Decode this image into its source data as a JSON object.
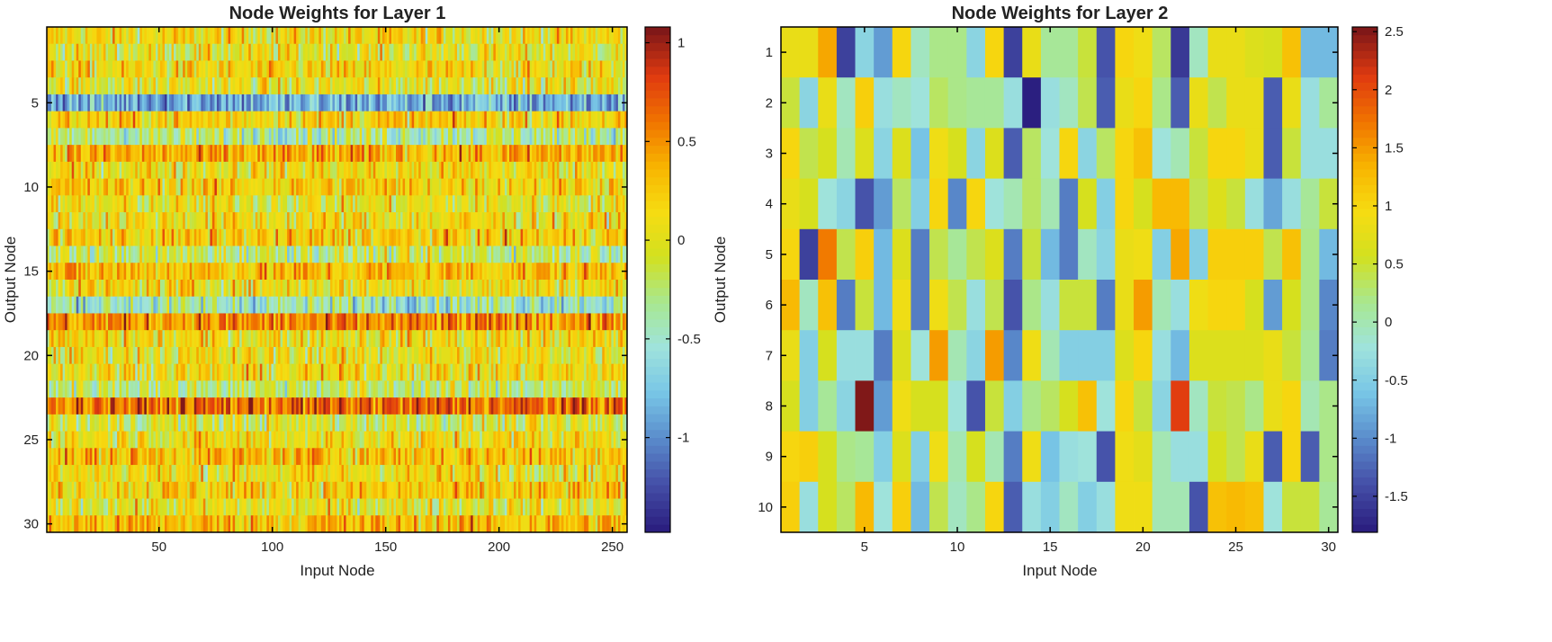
{
  "colormap": [
    "#2b1f80",
    "#4550a8",
    "#5a8ccc",
    "#78c6e6",
    "#9fe3dc",
    "#a8e890",
    "#d2e020",
    "#f6dc12",
    "#f8b400",
    "#f07400",
    "#e03a10",
    "#801818"
  ],
  "chart_data": [
    {
      "type": "heatmap",
      "title": "Node Weights for Layer 1",
      "xlabel": "Input Node",
      "ylabel": "Output Node",
      "rows": 30,
      "cols": 256,
      "xticks": [
        50,
        100,
        150,
        200,
        250
      ],
      "yticks": [
        5,
        10,
        15,
        20,
        25,
        30
      ],
      "clim": [
        -1.48,
        1.08
      ],
      "colorbar_ticks": [
        1,
        0.5,
        0,
        -0.5,
        -1
      ],
      "colorbar_tick_labels": [
        "1",
        "0.5",
        "0",
        "-0.5",
        "-1"
      ],
      "values_note": "per-row summary of weights (256 values per row, pseudo-randomly spread around the row mean)",
      "row_means": [
        0.1,
        0.0,
        0.1,
        0.0,
        -0.85,
        0.2,
        -0.3,
        0.35,
        0.1,
        0.2,
        0.0,
        0.1,
        0.2,
        -0.2,
        0.3,
        0.1,
        -0.45,
        0.5,
        0.1,
        0.05,
        0.1,
        -0.2,
        0.65,
        -0.1,
        0.1,
        0.3,
        0.1,
        0.2,
        0.0,
        0.3
      ],
      "row_spread": 0.35
    },
    {
      "type": "heatmap",
      "title": "Node Weights for Layer 2",
      "xlabel": "Input Node",
      "ylabel": "Output Node",
      "rows": 10,
      "cols": 30,
      "xticks": [
        5,
        10,
        15,
        20,
        25,
        30
      ],
      "yticks": [
        1,
        2,
        3,
        4,
        5,
        6,
        7,
        8,
        9,
        10
      ],
      "clim": [
        -1.81,
        2.54
      ],
      "colorbar_ticks": [
        2.5,
        2,
        1.5,
        1,
        0.5,
        0,
        -0.5,
        -1,
        -1.5
      ],
      "colorbar_tick_labels": [
        "2.5",
        "2",
        "1.5",
        "1",
        "0.5",
        "0",
        "-0.5",
        "-1",
        "-1.5"
      ],
      "values": [
        [
          0.8,
          0.8,
          1.4,
          -1.5,
          -0.4,
          -0.9,
          1.0,
          -0.1,
          0.2,
          0.2,
          -0.4,
          1.0,
          -1.5,
          0.8,
          0.1,
          0.1,
          0.5,
          -1.4,
          1.0,
          0.9,
          0.3,
          -1.6,
          -0.1,
          0.8,
          0.8,
          0.7,
          0.6,
          1.2,
          -0.7,
          -0.7
        ],
        [
          0.5,
          -0.4,
          0.8,
          -0.1,
          1.1,
          -0.3,
          -0.1,
          -0.2,
          0.3,
          0.2,
          0.1,
          0.1,
          -0.3,
          -1.8,
          -0.3,
          -0.1,
          0.4,
          -1.3,
          0.8,
          1.0,
          0.2,
          -1.3,
          0.8,
          0.4,
          0.8,
          0.8,
          -1.3,
          0.8,
          -0.3,
          0.1
        ],
        [
          1.0,
          0.4,
          0.6,
          0.0,
          0.7,
          -0.4,
          0.7,
          -0.6,
          0.9,
          0.6,
          -0.4,
          0.7,
          -1.3,
          0.3,
          -0.2,
          1.0,
          -0.4,
          0.3,
          1.0,
          1.2,
          -0.2,
          0.0,
          0.5,
          1.0,
          1.0,
          0.8,
          -1.3,
          0.5,
          -0.3,
          -0.3
        ],
        [
          0.8,
          0.6,
          -0.2,
          -0.4,
          -1.4,
          -0.9,
          0.3,
          -0.5,
          1.0,
          -1.0,
          1.0,
          -0.2,
          0.0,
          0.3,
          0.0,
          -1.1,
          0.6,
          -0.5,
          1.0,
          0.6,
          1.3,
          1.3,
          0.4,
          0.7,
          0.5,
          -0.3,
          -0.8,
          -0.3,
          0.1,
          0.5
        ],
        [
          1.0,
          -1.5,
          1.7,
          0.4,
          1.1,
          -0.7,
          0.7,
          -1.1,
          0.4,
          0.1,
          0.4,
          0.7,
          -1.1,
          0.5,
          -0.7,
          -1.1,
          -0.1,
          -0.4,
          0.8,
          0.9,
          -0.5,
          1.4,
          -0.5,
          1.1,
          1.1,
          1.1,
          0.4,
          1.2,
          0.2,
          -0.7
        ],
        [
          1.3,
          -0.1,
          1.2,
          -1.1,
          0.5,
          -0.7,
          0.9,
          -1.1,
          0.9,
          0.4,
          -0.3,
          0.4,
          -1.4,
          0.2,
          -0.3,
          0.5,
          0.5,
          -1.1,
          0.8,
          1.5,
          0.0,
          -0.3,
          0.85,
          1.0,
          1.0,
          0.6,
          -0.9,
          0.6,
          0.2,
          -1.0
        ],
        [
          0.8,
          -0.5,
          0.6,
          -0.3,
          -0.3,
          -1.1,
          0.7,
          -0.2,
          1.5,
          0.0,
          -0.4,
          1.5,
          -1.0,
          0.9,
          0.0,
          -0.5,
          -0.5,
          -0.5,
          0.7,
          1.0,
          -0.3,
          -0.7,
          0.7,
          0.7,
          0.7,
          0.7,
          0.8,
          0.5,
          0.1,
          -1.1
        ],
        [
          0.6,
          -0.5,
          0.1,
          -0.4,
          2.5,
          -0.9,
          0.9,
          0.6,
          0.6,
          -0.2,
          -1.4,
          0.5,
          -0.5,
          0.2,
          0.3,
          0.6,
          1.2,
          -0.2,
          1.0,
          0.5,
          -0.4,
          2.1,
          -0.1,
          0.5,
          0.4,
          0.2,
          0.8,
          1.0,
          0.0,
          0.2
        ],
        [
          1.0,
          1.1,
          0.6,
          0.2,
          0.1,
          -0.5,
          0.7,
          -0.5,
          0.85,
          0.0,
          0.6,
          0.0,
          -1.1,
          0.85,
          -0.6,
          -0.3,
          -0.2,
          -1.4,
          0.9,
          0.75,
          0.0,
          -0.3,
          -0.3,
          0.6,
          0.4,
          0.8,
          -1.3,
          1.0,
          -1.3,
          0.2
        ],
        [
          1.1,
          -0.3,
          0.6,
          0.3,
          1.3,
          -0.2,
          1.1,
          -0.7,
          0.4,
          -0.1,
          0.2,
          1.0,
          -1.3,
          -0.3,
          -0.5,
          -0.1,
          -0.5,
          -0.3,
          0.9,
          0.85,
          0.0,
          0.0,
          -1.4,
          1.2,
          1.3,
          1.2,
          -0.2,
          0.5,
          0.5,
          0.1
        ]
      ]
    }
  ]
}
